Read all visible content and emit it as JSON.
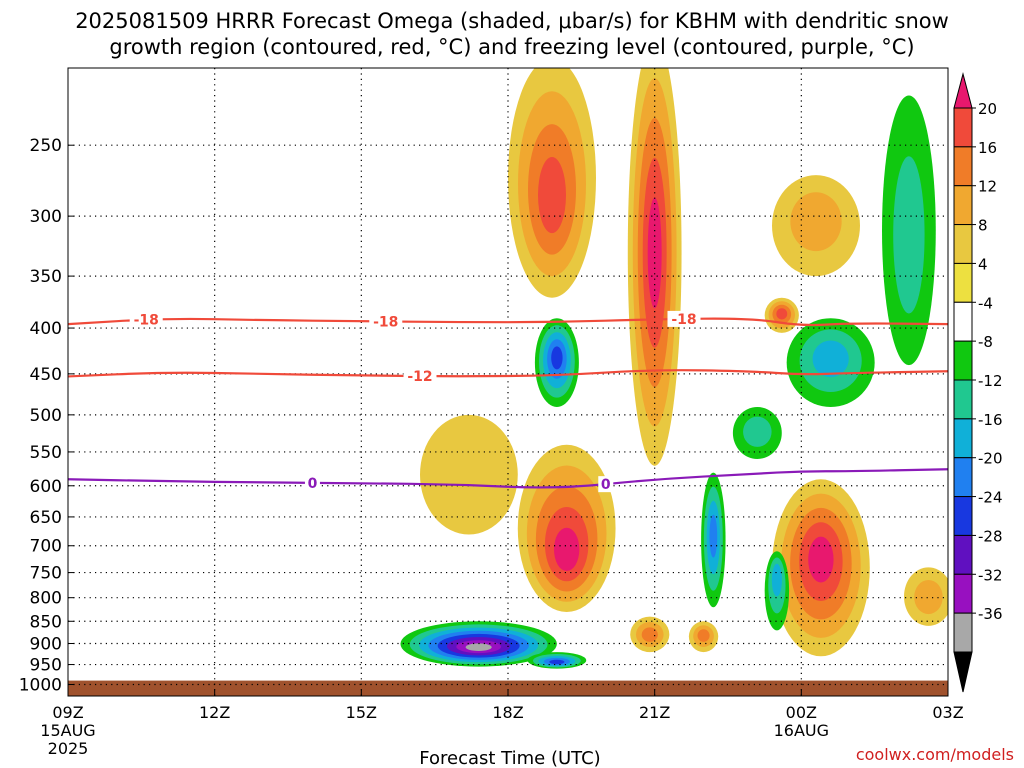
{
  "title_line1": "2025081509 HRRR Forecast Omega (shaded, μbar/s) for KBHM with dendritic snow",
  "title_line2": "growth region (contoured, red, °C) and freezing level (contoured, purple, °C)",
  "xlabel": "Forecast Time (UTC)",
  "credit": "coolwx.com/models",
  "colors": {
    "background": "#ffffff",
    "grid": "#000000",
    "ground": "#a0522d",
    "dgz_contour": "#f04a3a",
    "freezing_contour": "#8a1ab8",
    "credit": "#d02020"
  },
  "chart_data": {
    "type": "heatmap",
    "title": "2025081509 HRRR Forecast Omega (shaded, μbar/s) for KBHM with dendritic snow growth region (contoured, red, °C) and freezing level (contoured, purple, °C)",
    "xlabel": "Forecast Time (UTC)",
    "ylabel": "",
    "x_axis": {
      "unit": "hours since 09Z 15AUG 2025",
      "range": [
        0,
        18
      ],
      "ticks": [
        {
          "x": 0,
          "label": "09Z",
          "sub1": "15AUG",
          "sub2": "2025"
        },
        {
          "x": 3,
          "label": "12Z",
          "sub1": "",
          "sub2": ""
        },
        {
          "x": 6,
          "label": "15Z",
          "sub1": "",
          "sub2": ""
        },
        {
          "x": 9,
          "label": "18Z",
          "sub1": "",
          "sub2": ""
        },
        {
          "x": 12,
          "label": "21Z",
          "sub1": "",
          "sub2": ""
        },
        {
          "x": 15,
          "label": "00Z",
          "sub1": "16AUG",
          "sub2": ""
        },
        {
          "x": 18,
          "label": "03Z",
          "sub1": "",
          "sub2": ""
        }
      ]
    },
    "y_axis": {
      "unit": "hPa",
      "scale": "log",
      "reversed": true,
      "range": [
        1030,
        205
      ],
      "ticks": [
        250,
        300,
        350,
        400,
        450,
        500,
        550,
        600,
        650,
        700,
        750,
        800,
        850,
        900,
        950,
        1000
      ]
    },
    "grid": true,
    "ground_below_hPa": 990,
    "colorbar": {
      "labels": [
        "20",
        "16",
        "12",
        "8",
        "4",
        "-4",
        "-8",
        "-12",
        "-16",
        "-20",
        "-24",
        "-28",
        "-32",
        "-36"
      ],
      "colors": [
        "#e8186e",
        "#f04a3a",
        "#f07c28",
        "#f0a830",
        "#e8c840",
        "#ede040",
        "#ffffff",
        "#10c810",
        "#20c890",
        "#10b0d8",
        "#2080f0",
        "#1838e0",
        "#6010c0",
        "#9810c0",
        "#a8a8a8",
        "#000000"
      ]
    },
    "shaded_blobs": [
      {
        "x": 12.0,
        "p": 330,
        "rx": 0.55,
        "ry_up": 140,
        "ry_down": 240,
        "levels": [
          4,
          8,
          12,
          16,
          20
        ]
      },
      {
        "x": 9.9,
        "p": 290,
        "rx": 0.9,
        "ry_up": 90,
        "ry_down": 80,
        "levels": [
          4,
          8,
          12,
          16
        ]
      },
      {
        "x": 15.3,
        "p": 300,
        "rx": 0.9,
        "ry_up": 30,
        "ry_down": 50,
        "levels": [
          4,
          8
        ]
      },
      {
        "x": 14.6,
        "p": 385,
        "rx": 0.35,
        "ry_up": 15,
        "ry_down": 20,
        "levels": [
          4,
          8,
          12,
          16
        ]
      },
      {
        "x": 10.2,
        "p": 720,
        "rx": 1.0,
        "ry_up": 180,
        "ry_down": 110,
        "levels": [
          4,
          8,
          12,
          16,
          20
        ]
      },
      {
        "x": 15.4,
        "p": 720,
        "rx": 1.0,
        "ry_up": 130,
        "ry_down": 210,
        "levels": [
          4,
          8,
          12,
          16,
          20
        ]
      },
      {
        "x": 8.2,
        "p": 560,
        "rx": 1.0,
        "ry_up": 60,
        "ry_down": 120,
        "levels": [
          4
        ]
      },
      {
        "x": 11.9,
        "p": 880,
        "rx": 0.4,
        "ry_up": 40,
        "ry_down": 40,
        "levels": [
          4,
          8,
          12
        ]
      },
      {
        "x": 13.0,
        "p": 880,
        "rx": 0.3,
        "ry_up": 30,
        "ry_down": 40,
        "levels": [
          4,
          8,
          12
        ]
      },
      {
        "x": 17.6,
        "p": 800,
        "rx": 0.5,
        "ry_up": 60,
        "ry_down": 60,
        "levels": [
          4,
          8
        ]
      },
      {
        "x": 10.0,
        "p": 430,
        "rx": 0.45,
        "ry_up": 40,
        "ry_down": 60,
        "levels": [
          -4,
          -8,
          -12,
          -16,
          -20
        ]
      },
      {
        "x": 15.6,
        "p": 430,
        "rx": 0.9,
        "ry_up": 40,
        "ry_down": 60,
        "levels": [
          -4,
          -8,
          -12
        ]
      },
      {
        "x": 14.1,
        "p": 520,
        "rx": 0.5,
        "ry_up": 30,
        "ry_down": 40,
        "levels": [
          -4,
          -8
        ]
      },
      {
        "x": 17.2,
        "p": 320,
        "rx": 0.55,
        "ry_up": 100,
        "ry_down": 120,
        "levels": [
          -4,
          -8
        ]
      },
      {
        "x": 13.2,
        "p": 680,
        "rx": 0.25,
        "ry_up": 100,
        "ry_down": 140,
        "levels": [
          -4,
          -8,
          -12,
          -16
        ]
      },
      {
        "x": 8.4,
        "p": 910,
        "rx": 1.6,
        "ry_up": 60,
        "ry_down": 45,
        "levels": [
          -4,
          -8,
          -12,
          -16,
          -20,
          -24,
          -28,
          -32
        ]
      },
      {
        "x": 10.0,
        "p": 945,
        "rx": 0.6,
        "ry_up": 25,
        "ry_down": 15,
        "levels": [
          -4,
          -8,
          -12,
          -16,
          -20
        ]
      },
      {
        "x": 14.5,
        "p": 750,
        "rx": 0.25,
        "ry_up": 40,
        "ry_down": 120,
        "levels": [
          -4,
          -8,
          -12
        ]
      }
    ],
    "contours": [
      {
        "name": "-18",
        "color": "#f04a3a",
        "x": [
          0,
          2,
          4,
          6,
          8,
          10,
          12,
          14,
          15,
          16,
          18
        ],
        "p": [
          396,
          390,
          392,
          393,
          394,
          394,
          391,
          390,
          398,
          395,
          396
        ],
        "labels_at": [
          1.6,
          6.5,
          12.6
        ]
      },
      {
        "name": "-12",
        "color": "#f04a3a",
        "x": [
          0,
          2,
          4,
          6,
          8,
          10,
          12,
          14,
          15,
          16,
          18
        ],
        "p": [
          453,
          448,
          450,
          452,
          453,
          452,
          445,
          447,
          451,
          449,
          447
        ],
        "labels_at": [
          7.2
        ]
      },
      {
        "name": "0",
        "color": "#8a1ab8",
        "x": [
          0,
          2,
          4,
          6,
          8,
          10,
          12,
          14,
          15,
          16,
          18
        ],
        "p": [
          590,
          593,
          595,
          596,
          598,
          605,
          590,
          582,
          578,
          578,
          575
        ],
        "labels_at": [
          5.0,
          11.0
        ]
      }
    ]
  }
}
